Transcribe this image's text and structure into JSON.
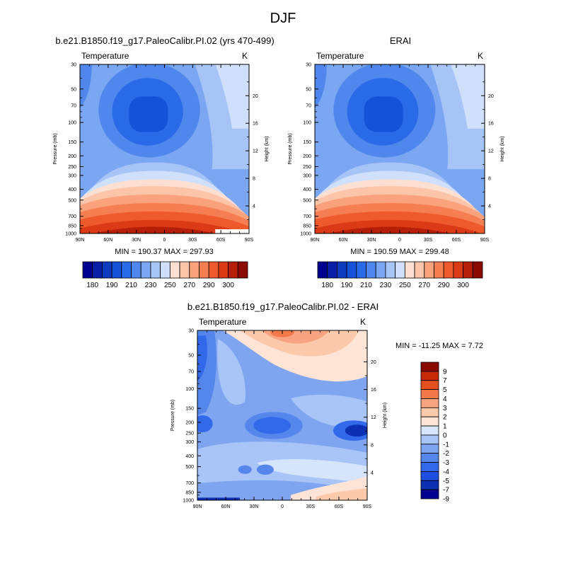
{
  "figure": {
    "title": "DJF",
    "panels": [
      {
        "title": "b.e21.B1850.f19_g17.PaleoCalibr.PI.02 (yrs 470-499)",
        "left_label": "Temperature",
        "right_label": "K",
        "ylabel": "Pressure (mb)",
        "ylabel_right": "Height (km)",
        "stats": "MIN = 190.37  MAX = 297.93"
      },
      {
        "title": "ERAI",
        "left_label": "Temperature",
        "right_label": "K",
        "ylabel": "Pressure (mb)",
        "ylabel_right": "Height (km)",
        "stats": "MIN = 190.59  MAX = 299.48"
      },
      {
        "title": "b.e21.B1850.f19_g17.PaleoCalibr.PI.02 - ERAI",
        "left_label": "Temperature",
        "right_label": "K",
        "ylabel": "Pressure (mb)",
        "ylabel_right": "Height (km)",
        "stats": "MIN = -11.25  MAX =   7.72"
      }
    ]
  },
  "chart_data": [
    {
      "type": "heatmap",
      "title": "b.e21.B1850.f19_g17.PaleoCalibr.PI.02 (yrs 470-499)",
      "xlabel": "",
      "ylabel": "Pressure (mb)",
      "y2label": "Height (km)",
      "x_ticks": [
        "90N",
        "60N",
        "30N",
        "0",
        "30S",
        "60S",
        "90S"
      ],
      "y_ticks": [
        "30",
        "50",
        "70",
        "100",
        "150",
        "200",
        "250",
        "300",
        "400",
        "500",
        "700",
        "850",
        "1000"
      ],
      "y2_ticks": [
        "4",
        "8",
        "12",
        "16",
        "20"
      ],
      "y_scale": "log",
      "ylim": [
        1000,
        30
      ],
      "min": 190.37,
      "max": 297.93,
      "colorbar": {
        "levels": [
          175,
          180,
          185,
          190,
          195,
          200,
          210,
          220,
          230,
          240,
          250,
          260,
          270,
          280,
          290,
          295,
          300
        ],
        "tick_labels": [
          "180",
          "190",
          "210",
          "230",
          "250",
          "270",
          "290",
          "300"
        ]
      }
    },
    {
      "type": "heatmap",
      "title": "ERAI",
      "xlabel": "",
      "ylabel": "Pressure (mb)",
      "y2label": "Height (km)",
      "x_ticks": [
        "90N",
        "60N",
        "30N",
        "0",
        "30S",
        "60S",
        "90S"
      ],
      "y_ticks": [
        "30",
        "50",
        "70",
        "100",
        "150",
        "200",
        "250",
        "300",
        "400",
        "500",
        "700",
        "850",
        "1000"
      ],
      "y2_ticks": [
        "4",
        "8",
        "12",
        "16",
        "20"
      ],
      "y_scale": "log",
      "ylim": [
        1000,
        30
      ],
      "min": 190.59,
      "max": 299.48,
      "colorbar": {
        "levels": [
          175,
          180,
          185,
          190,
          195,
          200,
          210,
          220,
          230,
          240,
          250,
          260,
          270,
          280,
          290,
          295,
          300
        ],
        "tick_labels": [
          "180",
          "190",
          "210",
          "230",
          "250",
          "270",
          "290",
          "300"
        ]
      }
    },
    {
      "type": "heatmap",
      "title": "b.e21.B1850.f19_g17.PaleoCalibr.PI.02 - ERAI",
      "xlabel": "",
      "ylabel": "Pressure (mb)",
      "y2label": "Height (km)",
      "x_ticks": [
        "90N",
        "60N",
        "30N",
        "0",
        "30S",
        "60S",
        "90S"
      ],
      "y_ticks": [
        "30",
        "50",
        "70",
        "100",
        "150",
        "200",
        "250",
        "300",
        "400",
        "500",
        "700",
        "850",
        "1000"
      ],
      "y2_ticks": [
        "4",
        "8",
        "12",
        "16",
        "20"
      ],
      "y_scale": "log",
      "ylim": [
        1000,
        30
      ],
      "min": -11.25,
      "max": 7.72,
      "colorbar": {
        "levels": [
          -9,
          -7,
          -5,
          -4,
          -3,
          -2,
          -1,
          0,
          1,
          2,
          3,
          4,
          5,
          7,
          9
        ],
        "tick_labels": [
          "9",
          "7",
          "5",
          "4",
          "3",
          "2",
          "1",
          "0",
          "-1",
          "-2",
          "-3",
          "-4",
          "-5",
          "-7",
          "-9"
        ]
      }
    }
  ],
  "colors": {
    "abs_scale": [
      "#00008f",
      "#0a1fa6",
      "#0f3bbf",
      "#1552d8",
      "#2a6ae8",
      "#4f87ec",
      "#7aa6f2",
      "#a7c4f7",
      "#d0e0fb",
      "#fde0d2",
      "#fcc4a8",
      "#f9a27c",
      "#f57f52",
      "#ef5a2c",
      "#db3a17",
      "#b51f0a",
      "#8a0b02"
    ],
    "diff_scale": [
      "#00008f",
      "#0d2fb2",
      "#1f4fe0",
      "#3169ea",
      "#5486ec",
      "#7fa5f1",
      "#a9c4f7",
      "#d6e5fc",
      "#fde4d6",
      "#fcc9ab",
      "#f9a480",
      "#f27a4a",
      "#e3501e",
      "#c5290a",
      "#8a0b02"
    ]
  }
}
